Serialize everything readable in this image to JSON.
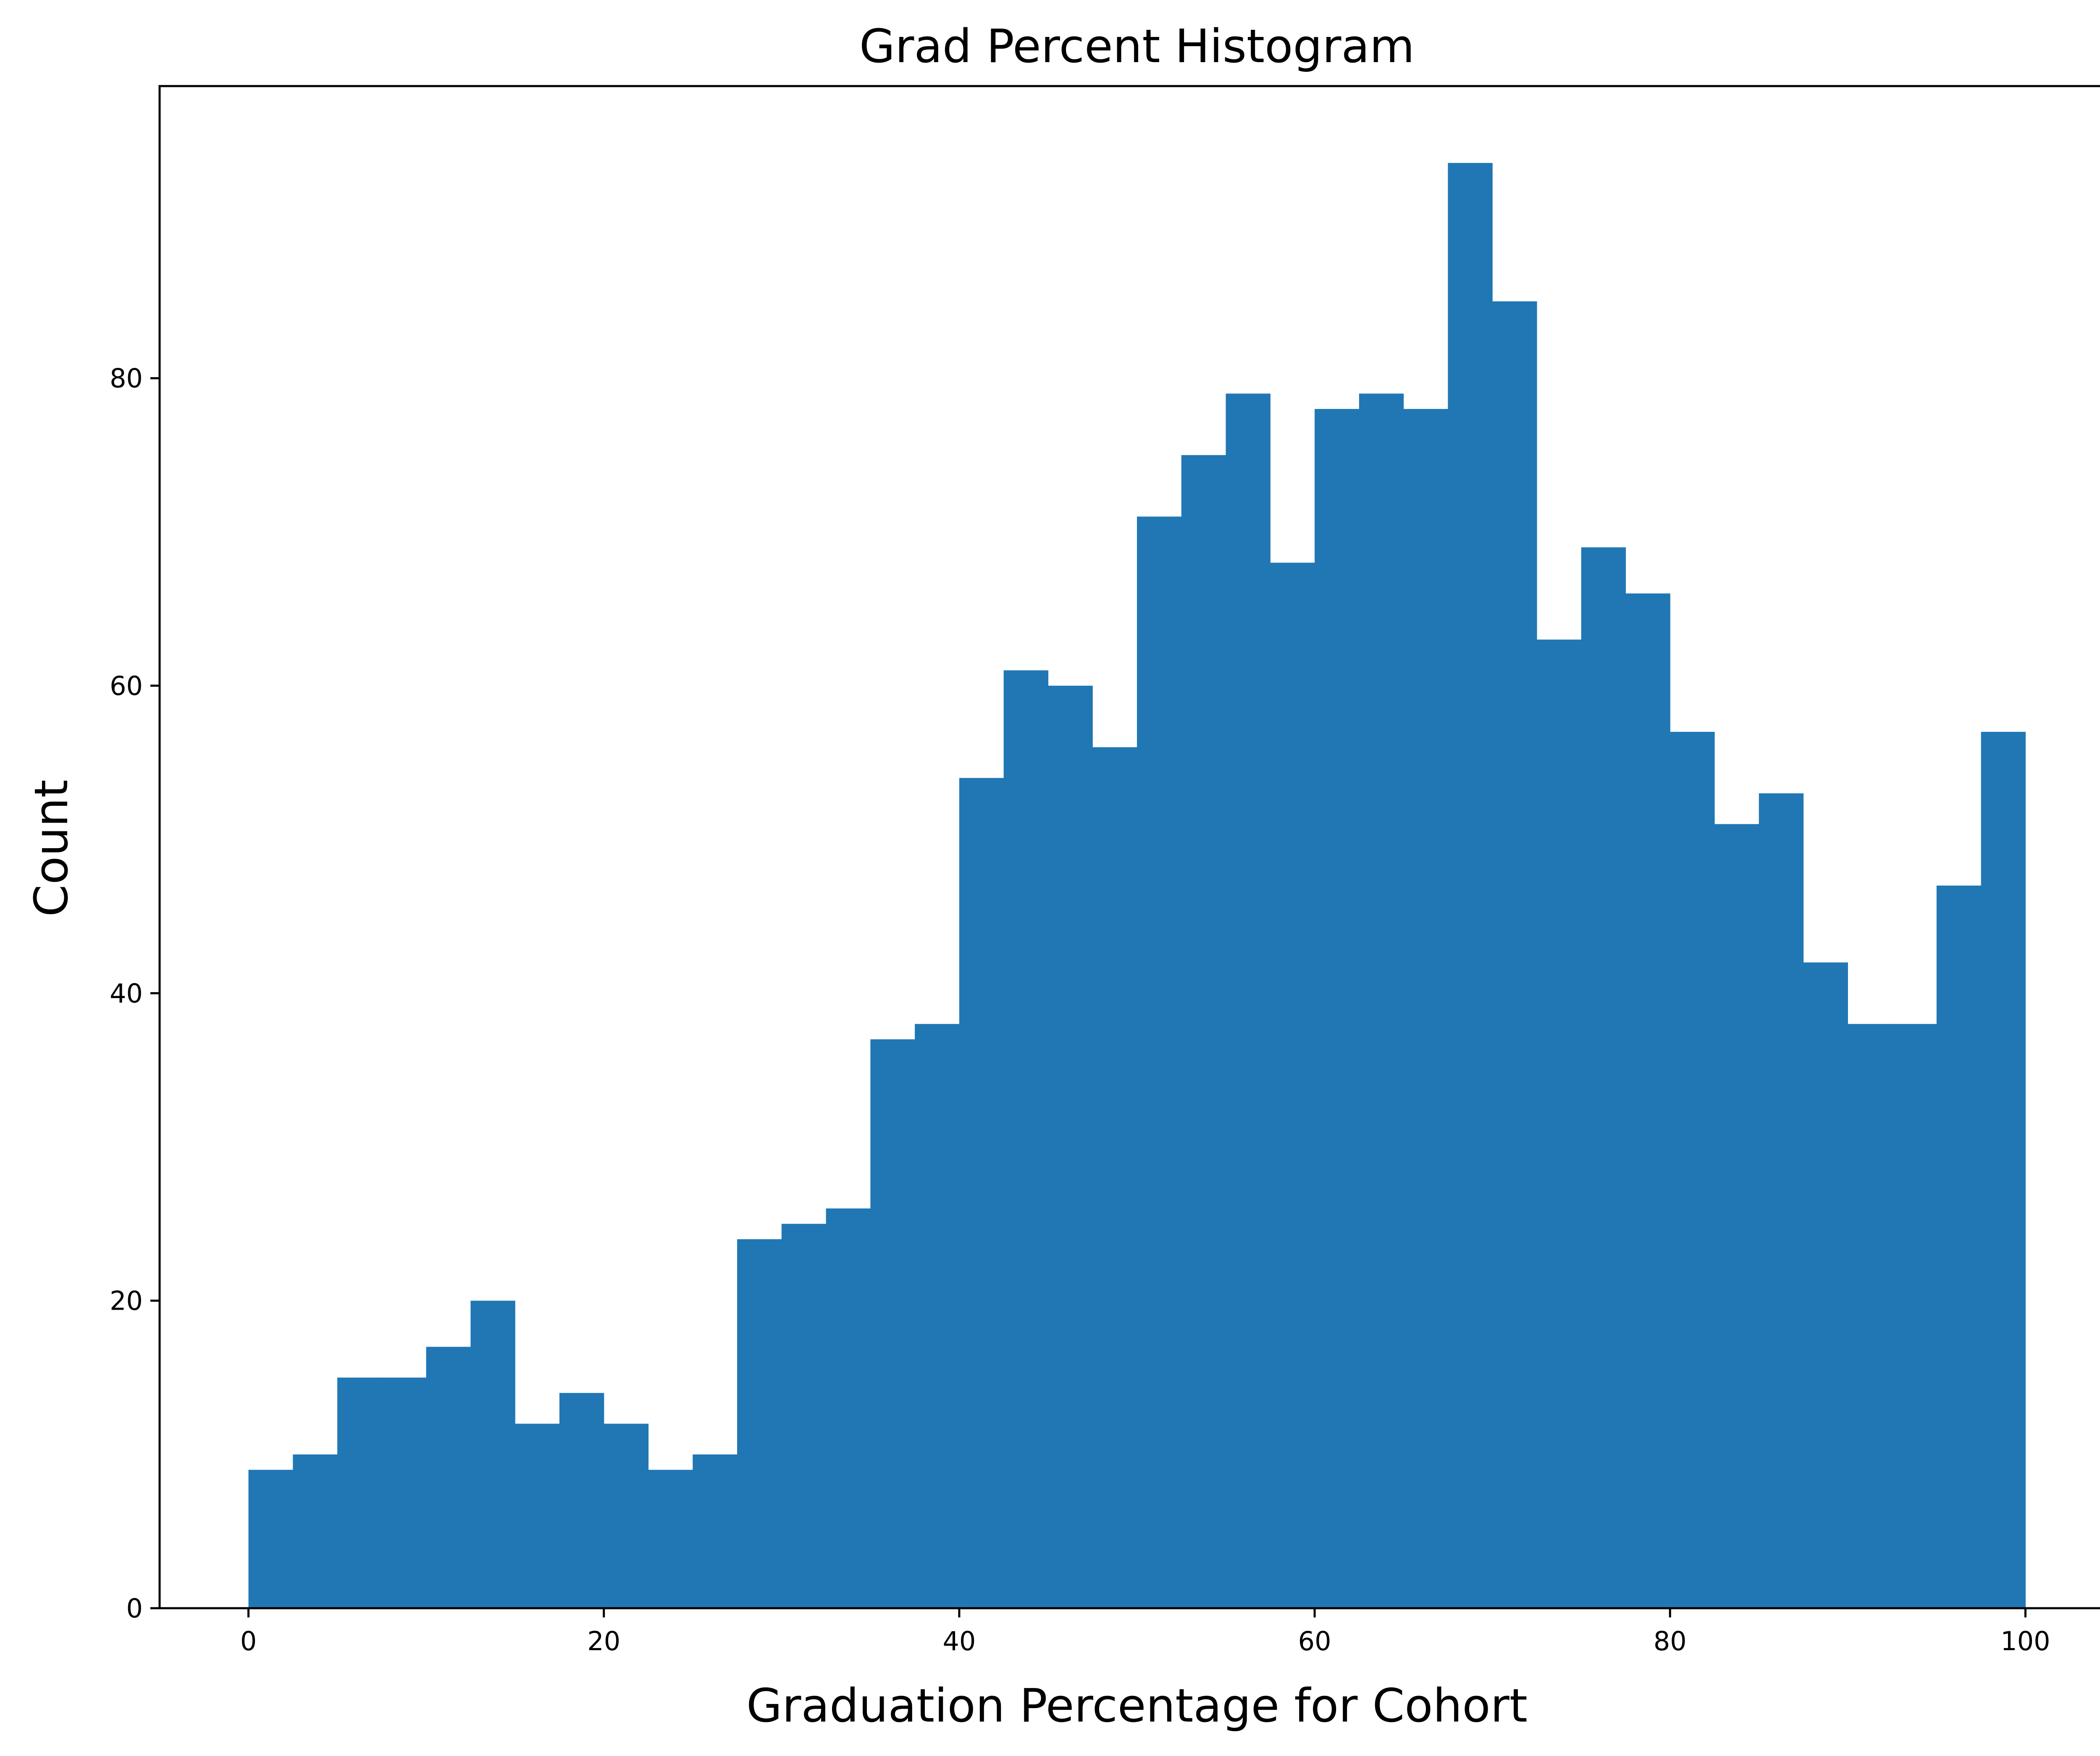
{
  "chart_data": {
    "type": "bar",
    "subtype": "histogram",
    "title": "Grad Percent Histogram",
    "xlabel": "Graduation Percentage for Cohort",
    "ylabel": "Count",
    "bin_edges": [
      0,
      2.5,
      5,
      7.5,
      10,
      12.5,
      15,
      17.5,
      20,
      22.5,
      25,
      27.5,
      30,
      32.5,
      35,
      37.5,
      40,
      42.5,
      45,
      47.5,
      50,
      52.5,
      55,
      57.5,
      60,
      62.5,
      65,
      67.5,
      70,
      72.5,
      75,
      77.5,
      80,
      82.5,
      85,
      87.5,
      90,
      92.5,
      95,
      97.5,
      100
    ],
    "values": [
      9,
      10,
      15,
      15,
      17,
      20,
      12,
      14,
      12,
      9,
      10,
      24,
      25,
      26,
      37,
      38,
      54,
      61,
      60,
      56,
      71,
      75,
      79,
      68,
      78,
      79,
      78,
      94,
      85,
      63,
      69,
      66,
      57,
      51,
      53,
      42,
      38,
      38,
      47,
      57
    ],
    "color": "#2077b4",
    "xlim": [
      -5,
      105
    ],
    "ylim": [
      0,
      99
    ],
    "xticks": [
      0,
      20,
      40,
      60,
      80,
      100
    ],
    "xtick_labels": [
      "0",
      "20",
      "40",
      "60",
      "80",
      "100"
    ],
    "yticks": [
      0,
      20,
      40,
      60,
      80
    ],
    "ytick_labels": [
      "0",
      "20",
      "40",
      "60",
      "80"
    ],
    "grid": false,
    "legend": "none"
  }
}
